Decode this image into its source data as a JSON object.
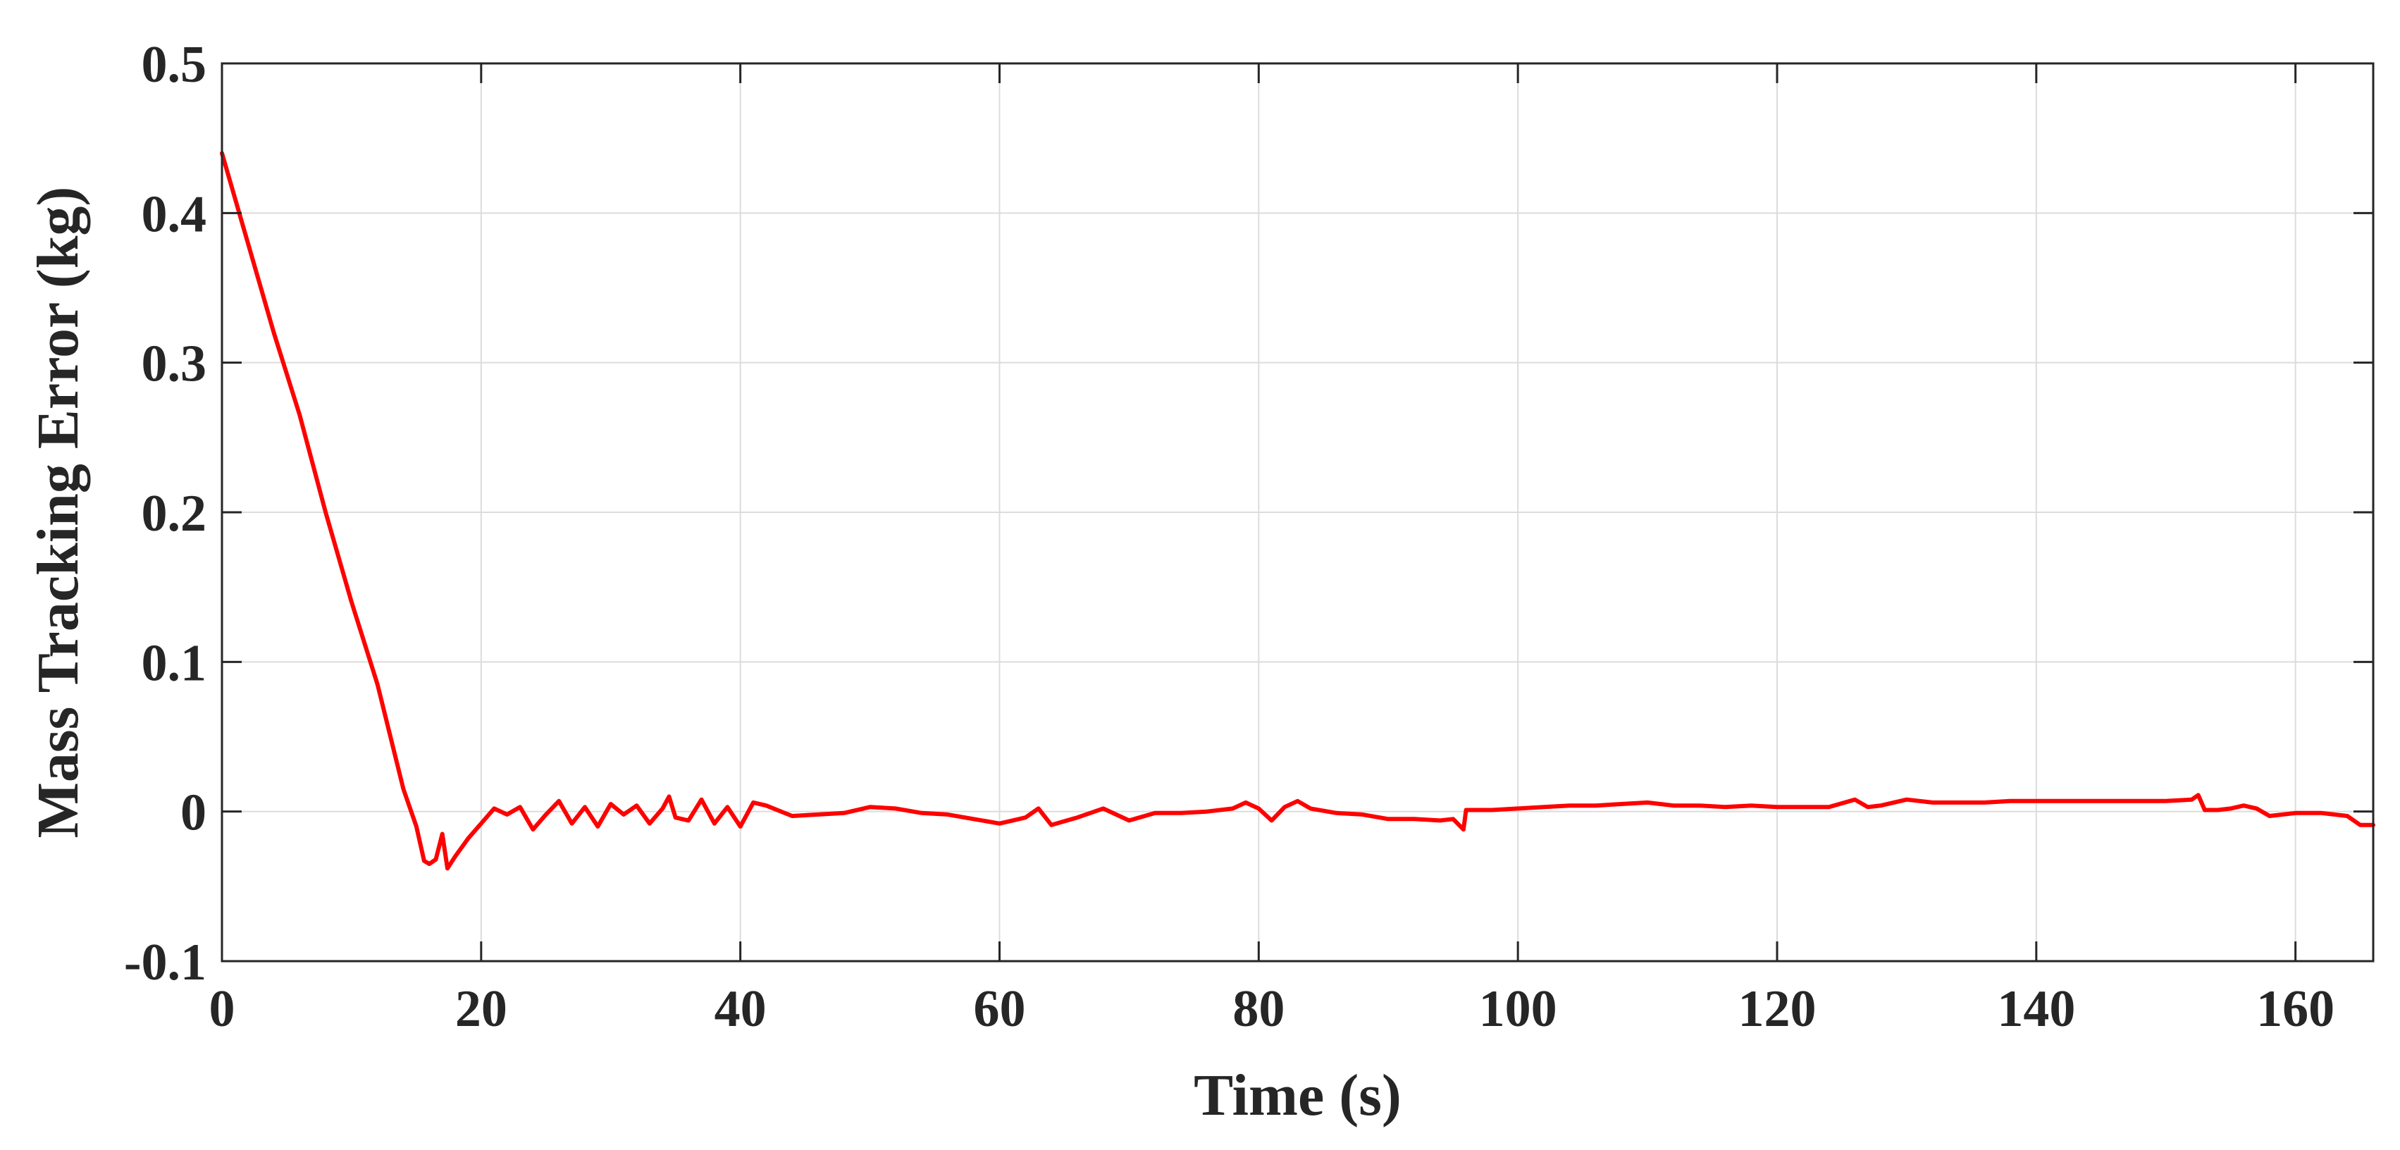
{
  "chart_data": {
    "type": "line",
    "title": "",
    "xlabel": "Time (s)",
    "ylabel": "Mass Tracking Error (kg)",
    "xlim": [
      0,
      166
    ],
    "ylim": [
      -0.1,
      0.5
    ],
    "xticks": [
      0,
      20,
      40,
      60,
      80,
      100,
      120,
      140,
      160
    ],
    "xtick_labels": [
      "0",
      "20",
      "40",
      "60",
      "80",
      "100",
      "120",
      "140",
      "160"
    ],
    "yticks": [
      -0.1,
      0,
      0.1,
      0.2,
      0.3,
      0.4,
      0.5
    ],
    "ytick_labels": [
      "-0.1",
      "0",
      "0.1",
      "0.2",
      "0.3",
      "0.4",
      "0.5"
    ],
    "grid": true,
    "legend": "none",
    "series": [
      {
        "color": "#ff0000",
        "x": [
          0,
          2,
          4,
          6,
          8,
          10,
          12,
          14,
          15,
          15.6,
          16,
          16.5,
          17,
          17.4,
          18,
          19,
          20,
          21,
          22,
          23,
          24,
          25,
          26,
          27,
          28,
          29,
          30,
          31,
          32,
          33,
          34,
          34.5,
          35,
          36,
          37,
          38,
          39,
          40,
          41,
          42,
          44,
          46,
          48,
          50,
          52,
          54,
          56,
          58,
          60,
          62,
          63,
          64,
          66,
          68,
          70,
          72,
          74,
          76,
          78,
          79,
          80,
          81,
          82,
          83,
          84,
          86,
          88,
          90,
          92,
          94,
          95,
          95.8,
          96,
          98,
          100,
          102,
          104,
          106,
          108,
          110,
          112,
          114,
          116,
          118,
          120,
          122,
          124,
          126,
          127,
          128,
          130,
          132,
          134,
          136,
          138,
          140,
          145,
          150,
          152,
          152.5,
          153,
          154,
          155,
          156,
          157,
          158,
          160,
          162,
          164,
          165,
          166
        ],
        "y": [
          0.44,
          0.38,
          0.32,
          0.265,
          0.2,
          0.14,
          0.085,
          0.015,
          -0.01,
          -0.033,
          -0.035,
          -0.032,
          -0.015,
          -0.038,
          -0.03,
          -0.018,
          -0.008,
          0.002,
          -0.002,
          0.003,
          -0.012,
          -0.002,
          0.007,
          -0.008,
          0.003,
          -0.01,
          0.005,
          -0.002,
          0.004,
          -0.008,
          0.002,
          0.01,
          -0.004,
          -0.006,
          0.008,
          -0.008,
          0.003,
          -0.01,
          0.006,
          0.004,
          -0.003,
          -0.002,
          -0.001,
          0.003,
          0.002,
          -0.001,
          -0.002,
          -0.005,
          -0.008,
          -0.004,
          0.002,
          -0.009,
          -0.004,
          0.002,
          -0.006,
          -0.001,
          -0.001,
          0,
          0.002,
          0.006,
          0.002,
          -0.006,
          0.003,
          0.007,
          0.002,
          -0.001,
          -0.002,
          -0.005,
          -0.005,
          -0.006,
          -0.005,
          -0.012,
          0.001,
          0.001,
          0.002,
          0.003,
          0.004,
          0.004,
          0.005,
          0.006,
          0.004,
          0.004,
          0.003,
          0.004,
          0.003,
          0.003,
          0.003,
          0.008,
          0.003,
          0.004,
          0.008,
          0.006,
          0.006,
          0.006,
          0.007,
          0.007,
          0.007,
          0.007,
          0.008,
          0.011,
          0.001,
          0.001,
          0.002,
          0.004,
          0.002,
          -0.003,
          -0.001,
          -0.001,
          -0.003,
          -0.009,
          -0.009
        ]
      }
    ]
  }
}
